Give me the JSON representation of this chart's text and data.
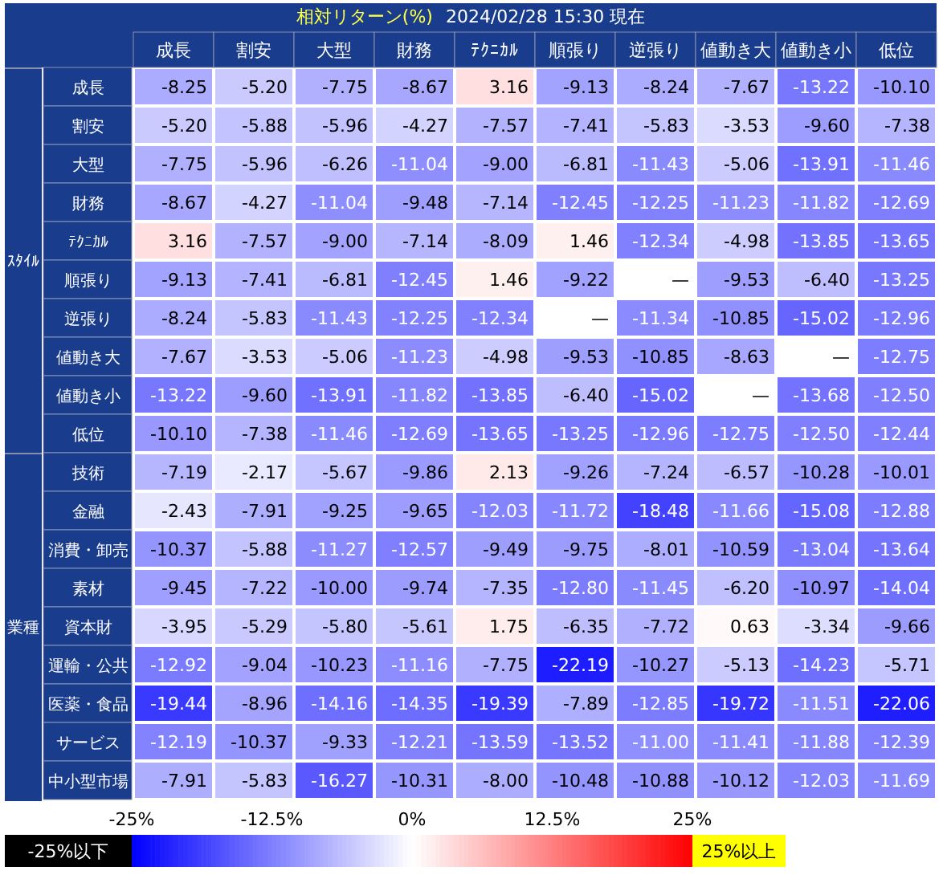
{
  "chart_data": {
    "type": "heatmap",
    "title": "相対リターン(%)",
    "subtitle": "2024/02/28 15:30 現在",
    "categories": [
      "成長",
      "割安",
      "大型",
      "財務",
      "ﾃｸﾆｶﾙ",
      "順張り",
      "逆張り",
      "値動き大",
      "値動き小",
      "低位"
    ],
    "y_categories": [
      "成長",
      "割安",
      "大型",
      "財務",
      "ﾃｸﾆｶﾙ",
      "順張り",
      "逆張り",
      "値動き大",
      "値動き小",
      "低位",
      "技術",
      "金融",
      "消費・卸売",
      "素材",
      "資本財",
      "運輸・公共",
      "医薬・食品",
      "サービス",
      "中小型市場"
    ],
    "cells": [
      [
        -8.25,
        -5.2,
        -7.75,
        -8.67,
        3.16,
        -9.13,
        -8.24,
        -7.67,
        -13.22,
        -10.1
      ],
      [
        -5.2,
        -5.88,
        -5.96,
        -4.27,
        -7.57,
        -7.41,
        -5.83,
        -3.53,
        -9.6,
        -7.38
      ],
      [
        -7.75,
        -5.96,
        -6.26,
        -11.04,
        -9.0,
        -6.81,
        -11.43,
        -5.06,
        -13.91,
        -11.46
      ],
      [
        -8.67,
        -4.27,
        -11.04,
        -9.48,
        -7.14,
        -12.45,
        -12.25,
        -11.23,
        -11.82,
        -12.69
      ],
      [
        3.16,
        -7.57,
        -9.0,
        -7.14,
        -8.09,
        1.46,
        -12.34,
        -4.98,
        -13.85,
        -13.65
      ],
      [
        -9.13,
        -7.41,
        -6.81,
        -12.45,
        1.46,
        -9.22,
        null,
        -9.53,
        -6.4,
        -13.25
      ],
      [
        -8.24,
        -5.83,
        -11.43,
        -12.25,
        -12.34,
        null,
        -11.34,
        -10.85,
        -15.02,
        -12.96
      ],
      [
        -7.67,
        -3.53,
        -5.06,
        -11.23,
        -4.98,
        -9.53,
        -10.85,
        -8.63,
        null,
        -12.75
      ],
      [
        -13.22,
        -9.6,
        -13.91,
        -11.82,
        -13.85,
        -6.4,
        -15.02,
        null,
        -13.68,
        -12.5
      ],
      [
        -10.1,
        -7.38,
        -11.46,
        -12.69,
        -13.65,
        -13.25,
        -12.96,
        -12.75,
        -12.5,
        -12.44
      ],
      [
        -7.19,
        -2.17,
        -5.67,
        -9.86,
        2.13,
        -9.26,
        -7.24,
        -6.57,
        -10.28,
        -10.01
      ],
      [
        -2.43,
        -7.91,
        -9.25,
        -9.65,
        -12.03,
        -11.72,
        -18.48,
        -11.66,
        -15.08,
        -12.88
      ],
      [
        -10.37,
        -5.88,
        -11.27,
        -12.57,
        -9.49,
        -9.75,
        -8.01,
        -10.59,
        -13.04,
        -13.64
      ],
      [
        -9.45,
        -7.22,
        -10.0,
        -9.74,
        -7.35,
        -12.8,
        -11.45,
        -6.2,
        -10.97,
        -14.04
      ],
      [
        -3.95,
        -5.29,
        -5.8,
        -5.61,
        1.75,
        -6.35,
        -7.72,
        0.63,
        -3.34,
        -9.66
      ],
      [
        -12.92,
        -9.04,
        -10.23,
        -11.16,
        -7.75,
        -22.19,
        -10.27,
        -5.13,
        -14.23,
        -5.71
      ],
      [
        -19.44,
        -8.96,
        -14.16,
        -14.35,
        -19.39,
        -7.89,
        -12.85,
        -19.72,
        -11.51,
        -22.06
      ],
      [
        -12.19,
        -10.37,
        -9.33,
        -12.21,
        -13.59,
        -13.52,
        -11.0,
        -11.41,
        -11.88,
        -12.39
      ],
      [
        -7.91,
        -5.83,
        -16.27,
        -10.31,
        -8.0,
        -10.48,
        -10.88,
        -10.12,
        -12.03,
        -11.69
      ]
    ],
    "cell_labels": [
      [
        "-8.25",
        "-5.20",
        "-7.75",
        "-8.67",
        "3.16",
        "-9.13",
        "-8.24",
        "-7.67",
        "-13.22",
        "-10.10"
      ],
      [
        "-5.20",
        "-5.88",
        "-5.96",
        "-4.27",
        "-7.57",
        "-7.41",
        "-5.83",
        "-3.53",
        "-9.60",
        "-7.38"
      ],
      [
        "-7.75",
        "-5.96",
        "-6.26",
        "-11.04",
        "-9.00",
        "-6.81",
        "-11.43",
        "-5.06",
        "-13.91",
        "-11.46"
      ],
      [
        "-8.67",
        "-4.27",
        "-11.04",
        "-9.48",
        "-7.14",
        "-12.45",
        "-12.25",
        "-11.23",
        "-11.82",
        "-12.69"
      ],
      [
        "3.16",
        "-7.57",
        "-9.00",
        "-7.14",
        "-8.09",
        "1.46",
        "-12.34",
        "-4.98",
        "-13.85",
        "-13.65"
      ],
      [
        "-9.13",
        "-7.41",
        "-6.81",
        "-12.45",
        "1.46",
        "-9.22",
        "—",
        "-9.53",
        "-6.40",
        "-13.25"
      ],
      [
        "-8.24",
        "-5.83",
        "-11.43",
        "-12.25",
        "-12.34",
        "—",
        "-11.34",
        "-10.85",
        "-15.02",
        "-12.96"
      ],
      [
        "-7.67",
        "-3.53",
        "-5.06",
        "-11.23",
        "-4.98",
        "-9.53",
        "-10.85",
        "-8.63",
        "—",
        "-12.75"
      ],
      [
        "-13.22",
        "-9.60",
        "-13.91",
        "-11.82",
        "-13.85",
        "-6.40",
        "-15.02",
        "—",
        "-13.68",
        "-12.50"
      ],
      [
        "-10.10",
        "-7.38",
        "-11.46",
        "-12.69",
        "-13.65",
        "-13.25",
        "-12.96",
        "-12.75",
        "-12.50",
        "-12.44"
      ],
      [
        "-7.19",
        "-2.17",
        "-5.67",
        "-9.86",
        "2.13",
        "-9.26",
        "-7.24",
        "-6.57",
        "-10.28",
        "-10.01"
      ],
      [
        "-2.43",
        "-7.91",
        "-9.25",
        "-9.65",
        "-12.03",
        "-11.72",
        "-18.48",
        "-11.66",
        "-15.08",
        "-12.88"
      ],
      [
        "-10.37",
        "-5.88",
        "-11.27",
        "-12.57",
        "-9.49",
        "-9.75",
        "-8.01",
        "-10.59",
        "-13.04",
        "-13.64"
      ],
      [
        "-9.45",
        "-7.22",
        "-10.00",
        "-9.74",
        "-7.35",
        "-12.80",
        "-11.45",
        "-6.20",
        "-10.97",
        "-14.04"
      ],
      [
        "-3.95",
        "-5.29",
        "-5.80",
        "-5.61",
        "1.75",
        "-6.35",
        "-7.72",
        "0.63",
        "-3.34",
        "-9.66"
      ],
      [
        "-12.92",
        "-9.04",
        "-10.23",
        "-11.16",
        "-7.75",
        "-22.19",
        "-10.27",
        "-5.13",
        "-14.23",
        "-5.71"
      ],
      [
        "-19.44",
        "-8.96",
        "-14.16",
        "-14.35",
        "-19.39",
        "-7.89",
        "-12.85",
        "-19.72",
        "-11.51",
        "-22.06"
      ],
      [
        "-12.19",
        "-10.37",
        "-9.33",
        "-12.21",
        "-13.59",
        "-13.52",
        "-11.00",
        "-11.41",
        "-11.88",
        "-12.39"
      ],
      [
        "-7.91",
        "-5.83",
        "-16.27",
        "-10.31",
        "-8.00",
        "-10.48",
        "-10.88",
        "-10.12",
        "-12.03",
        "-11.69"
      ]
    ],
    "clim": [
      -25,
      25
    ],
    "cticks": [
      {
        "value": -25,
        "label": "-25%"
      },
      {
        "value": -12.5,
        "label": "-12.5%"
      },
      {
        "value": 0,
        "label": "0%"
      },
      {
        "value": 12.5,
        "label": "12.5%"
      },
      {
        "value": 25,
        "label": "25%"
      }
    ],
    "annotations": [
      "ｽﾀｲﾙ",
      "業種",
      "-25%以下",
      "25%以上"
    ]
  }
}
